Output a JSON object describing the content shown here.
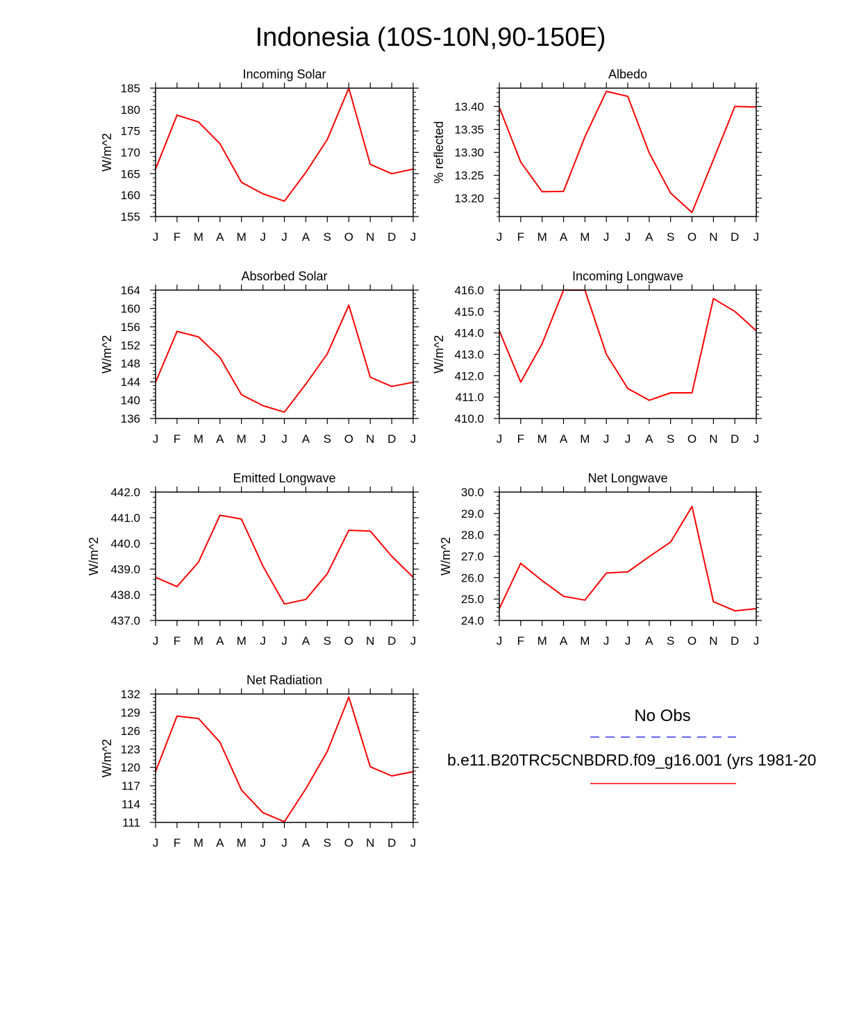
{
  "figure_title": "Indonesia (10S-10N,90-150E)",
  "legend": {
    "obs_label": "No Obs",
    "model_label": "b.e11.B20TRC5CNBDRD.f09_g16.001 (yrs 1981-20",
    "obs_color": "#3333ff",
    "model_color": "#ff0000"
  },
  "chart_data": [
    {
      "type": "line",
      "title": "Incoming Solar",
      "ylabel": "W/m^2",
      "categories": [
        "J",
        "F",
        "M",
        "A",
        "M",
        "J",
        "J",
        "A",
        "S",
        "O",
        "N",
        "D",
        "J"
      ],
      "ylim": [
        155,
        185
      ],
      "yticks": [
        155,
        160,
        165,
        170,
        175,
        180,
        185
      ],
      "ytick_labels": [
        "155",
        "160",
        "165",
        "170",
        "175",
        "180",
        "185"
      ],
      "series": [
        {
          "name": "model",
          "values": [
            166.1,
            178.7,
            177.1,
            172.0,
            163.0,
            160.3,
            158.6,
            165.3,
            173.0,
            185.0,
            167.2,
            165.0,
            166.1
          ]
        }
      ]
    },
    {
      "type": "line",
      "title": "Albedo",
      "ylabel": "% reflected",
      "categories": [
        "J",
        "F",
        "M",
        "A",
        "M",
        "J",
        "J",
        "A",
        "S",
        "O",
        "N",
        "D",
        "J"
      ],
      "ylim": [
        13.16,
        13.44
      ],
      "yticks": [
        13.2,
        13.25,
        13.3,
        13.35,
        13.4
      ],
      "ytick_labels": [
        "13.20",
        "13.25",
        "13.30",
        "13.35",
        "13.40"
      ],
      "series": [
        {
          "name": "model",
          "values": [
            13.398,
            13.279,
            13.214,
            13.215,
            13.334,
            13.433,
            13.422,
            13.299,
            13.211,
            13.169,
            13.284,
            13.4,
            13.399
          ]
        }
      ]
    },
    {
      "type": "line",
      "title": "Absorbed Solar",
      "ylabel": "W/m^2",
      "categories": [
        "J",
        "F",
        "M",
        "A",
        "M",
        "J",
        "J",
        "A",
        "S",
        "O",
        "N",
        "D",
        "J"
      ],
      "ylim": [
        136,
        164
      ],
      "yticks": [
        136,
        140,
        144,
        148,
        152,
        156,
        160,
        164
      ],
      "ytick_labels": [
        "136",
        "140",
        "144",
        "148",
        "152",
        "156",
        "160",
        "164"
      ],
      "series": [
        {
          "name": "model",
          "values": [
            143.9,
            155.0,
            153.8,
            149.3,
            141.2,
            138.8,
            137.4,
            143.5,
            150.1,
            160.7,
            145.0,
            143.0,
            143.9
          ]
        }
      ]
    },
    {
      "type": "line",
      "title": "Incoming Longwave",
      "ylabel": "W/m^2",
      "categories": [
        "J",
        "F",
        "M",
        "A",
        "M",
        "J",
        "J",
        "A",
        "S",
        "O",
        "N",
        "D",
        "J"
      ],
      "ylim": [
        410.0,
        416.0
      ],
      "yticks": [
        410,
        411,
        412,
        413,
        414,
        415,
        416
      ],
      "ytick_labels": [
        "410.0",
        "411.0",
        "412.0",
        "413.0",
        "414.0",
        "415.0",
        "416.0"
      ],
      "series": [
        {
          "name": "model",
          "values": [
            414.1,
            411.7,
            413.5,
            416.0,
            416.0,
            413.0,
            411.4,
            410.85,
            411.2,
            411.2,
            415.6,
            415.0,
            414.1
          ]
        }
      ]
    },
    {
      "type": "line",
      "title": "Emitted Longwave",
      "ylabel": "W/m^2",
      "categories": [
        "J",
        "F",
        "M",
        "A",
        "M",
        "J",
        "J",
        "A",
        "S",
        "O",
        "N",
        "D",
        "J"
      ],
      "ylim": [
        437.0,
        442.0
      ],
      "yticks": [
        437,
        438,
        439,
        440,
        441,
        442
      ],
      "ytick_labels": [
        "437.0",
        "438.0",
        "439.0",
        "440.0",
        "441.0",
        "442.0"
      ],
      "series": [
        {
          "name": "model",
          "values": [
            438.68,
            438.32,
            439.27,
            441.1,
            440.95,
            439.12,
            437.64,
            437.82,
            438.82,
            440.51,
            440.48,
            439.5,
            438.68
          ]
        }
      ]
    },
    {
      "type": "line",
      "title": "Net Longwave",
      "ylabel": "W/m^2",
      "categories": [
        "J",
        "F",
        "M",
        "A",
        "M",
        "J",
        "J",
        "A",
        "S",
        "O",
        "N",
        "D",
        "J"
      ],
      "ylim": [
        24.0,
        30.0
      ],
      "yticks": [
        24,
        25,
        26,
        27,
        28,
        29,
        30
      ],
      "ytick_labels": [
        "24.0",
        "25.0",
        "26.0",
        "27.0",
        "28.0",
        "29.0",
        "30.0"
      ],
      "series": [
        {
          "name": "model",
          "values": [
            24.55,
            26.67,
            25.86,
            25.13,
            24.95,
            26.22,
            26.27,
            26.98,
            27.66,
            29.33,
            24.88,
            24.45,
            24.55
          ]
        }
      ]
    },
    {
      "type": "line",
      "title": "Net Radiation",
      "ylabel": "W/m^2",
      "categories": [
        "J",
        "F",
        "M",
        "A",
        "M",
        "J",
        "J",
        "A",
        "S",
        "O",
        "N",
        "D",
        "J"
      ],
      "ylim": [
        111,
        132
      ],
      "yticks": [
        111,
        114,
        117,
        120,
        123,
        126,
        129,
        132
      ],
      "ytick_labels": [
        "111",
        "114",
        "117",
        "120",
        "123",
        "126",
        "129",
        "132"
      ],
      "series": [
        {
          "name": "model",
          "values": [
            119.3,
            128.4,
            128.0,
            124.1,
            116.3,
            112.6,
            111.1,
            116.5,
            122.6,
            131.5,
            120.1,
            118.6,
            119.3
          ]
        }
      ]
    }
  ]
}
